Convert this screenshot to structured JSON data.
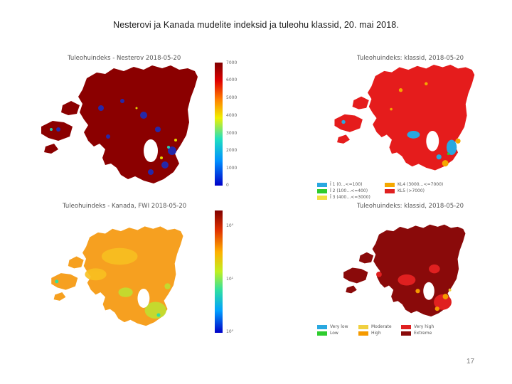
{
  "slide": {
    "title": "Nesterovi ja Kanada mudelite indeksid ja tuleohu klassid, 20. mai 2018.",
    "page_number": "17"
  },
  "panels": {
    "nesterov_index": {
      "title": "Tuleohuindeks - Nesterov 2018-05-20",
      "colorbar_ticks": [
        "7000",
        "6000",
        "5000",
        "4000",
        "3000",
        "2000",
        "1000",
        "0"
      ],
      "colors": [
        "#0000c8",
        "#0090ff",
        "#20e0c0",
        "#f0f000",
        "#ff8000",
        "#e00000",
        "#800000"
      ]
    },
    "nesterov_classes": {
      "title": "Tuleohuindeks: klassid, 2018-05-20",
      "legend": [
        {
          "label": "Ǐ 1 (0…<=100)",
          "color": "#29a8e0"
        },
        {
          "label": "KL4 (3000…<=7000)",
          "color": "#f5a800"
        },
        {
          "label": "Ǐ 2 (100…<=400)",
          "color": "#2ecc2e"
        },
        {
          "label": "KL5 (>7000)",
          "color": "#e02020"
        },
        {
          "label": "Ǐ 3 (400…<=3000)",
          "color": "#f0e040"
        }
      ]
    },
    "canada_fwi": {
      "title": "Tuleohuindeks - Kanada, FWI 2018-05-20",
      "colorbar_ticks": [
        "10°",
        "10¹",
        "10°"
      ],
      "colors": [
        "#0000c8",
        "#00a0ff",
        "#30e0a0",
        "#c0f020",
        "#ffb000",
        "#e03000",
        "#800000"
      ]
    },
    "canada_classes": {
      "title": "Tuleohuindeks: klassid, 2018-05-20",
      "legend": [
        {
          "label": "Very low",
          "color": "#29a8e0"
        },
        {
          "label": "Moderate",
          "color": "#f0d040"
        },
        {
          "label": "Very high",
          "color": "#e02020"
        },
        {
          "label": "Low",
          "color": "#2ecc2e"
        },
        {
          "label": "High",
          "color": "#f59a00"
        },
        {
          "label": "Extreme",
          "color": "#8a0a0a"
        }
      ]
    }
  }
}
